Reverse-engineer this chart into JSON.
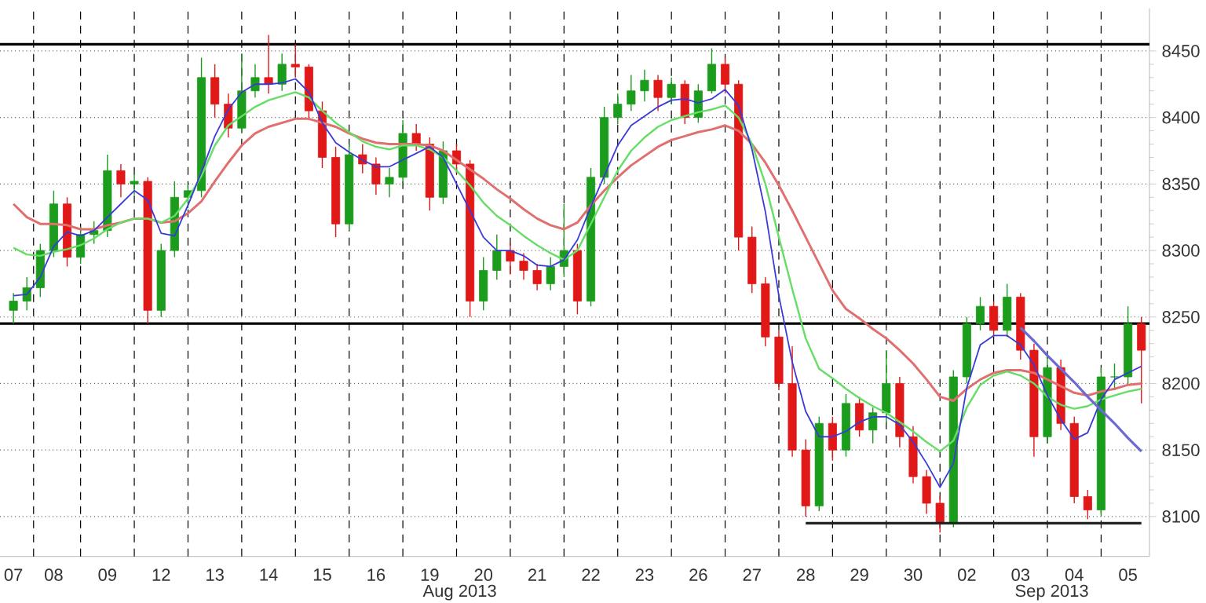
{
  "chart_data": {
    "type": "candlestick",
    "categories": [
      "07",
      null,
      null,
      "08",
      null,
      null,
      null,
      "09",
      null,
      null,
      null,
      "12",
      null,
      null,
      null,
      "13",
      null,
      null,
      null,
      "14",
      null,
      null,
      null,
      "15",
      null,
      null,
      null,
      "16",
      null,
      null,
      null,
      "19",
      null,
      null,
      null,
      "20",
      null,
      null,
      null,
      "21",
      null,
      null,
      null,
      "22",
      null,
      null,
      null,
      "23",
      null,
      null,
      null,
      "26",
      null,
      null,
      null,
      "27",
      null,
      null,
      null,
      "28",
      null,
      null,
      null,
      "29",
      null,
      null,
      null,
      "30",
      null,
      null,
      null,
      "02",
      null,
      null,
      null,
      "03",
      null,
      null,
      null,
      "04",
      null,
      null,
      null,
      "05",
      null
    ],
    "ohlc": [
      [
        8255,
        8268,
        8245,
        8262
      ],
      [
        8262,
        8280,
        8255,
        8272
      ],
      [
        8272,
        8305,
        8265,
        8300
      ],
      [
        8300,
        8345,
        8295,
        8335
      ],
      [
        8335,
        8340,
        8288,
        8295
      ],
      [
        8295,
        8318,
        8290,
        8312
      ],
      [
        8312,
        8322,
        8305,
        8315
      ],
      [
        8315,
        8372,
        8310,
        8360
      ],
      [
        8360,
        8365,
        8340,
        8350
      ],
      [
        8350,
        8358,
        8342,
        8352
      ],
      [
        8352,
        8355,
        8245,
        8255
      ],
      [
        8255,
        8305,
        8250,
        8300
      ],
      [
        8300,
        8352,
        8295,
        8340
      ],
      [
        8340,
        8350,
        8332,
        8345
      ],
      [
        8345,
        8445,
        8340,
        8430
      ],
      [
        8430,
        8440,
        8400,
        8410
      ],
      [
        8410,
        8418,
        8385,
        8392
      ],
      [
        8392,
        8448,
        8388,
        8420
      ],
      [
        8420,
        8440,
        8415,
        8430
      ],
      [
        8430,
        8462,
        8418,
        8425
      ],
      [
        8425,
        8448,
        8420,
        8440
      ],
      [
        8440,
        8455,
        8430,
        8438
      ],
      [
        8438,
        8440,
        8398,
        8405
      ],
      [
        8405,
        8412,
        8362,
        8370
      ],
      [
        8370,
        8378,
        8310,
        8320
      ],
      [
        8320,
        8380,
        8315,
        8372
      ],
      [
        8372,
        8380,
        8358,
        8365
      ],
      [
        8365,
        8370,
        8342,
        8350
      ],
      [
        8350,
        8362,
        8340,
        8355
      ],
      [
        8355,
        8398,
        8350,
        8388
      ],
      [
        8388,
        8395,
        8375,
        8380
      ],
      [
        8380,
        8385,
        8330,
        8340
      ],
      [
        8340,
        8382,
        8335,
        8375
      ],
      [
        8375,
        8380,
        8358,
        8365
      ],
      [
        8365,
        8368,
        8250,
        8262
      ],
      [
        8262,
        8295,
        8255,
        8285
      ],
      [
        8285,
        8312,
        8278,
        8300
      ],
      [
        8300,
        8305,
        8282,
        8292
      ],
      [
        8292,
        8298,
        8278,
        8285
      ],
      [
        8285,
        8290,
        8270,
        8275
      ],
      [
        8275,
        8295,
        8270,
        8288
      ],
      [
        8288,
        8335,
        8280,
        8300
      ],
      [
        8300,
        8305,
        8252,
        8262
      ],
      [
        8262,
        8362,
        8258,
        8355
      ],
      [
        8355,
        8408,
        8350,
        8400
      ],
      [
        8400,
        8418,
        8395,
        8410
      ],
      [
        8410,
        8432,
        8405,
        8420
      ],
      [
        8420,
        8436,
        8412,
        8428
      ],
      [
        8428,
        8432,
        8405,
        8415
      ],
      [
        8415,
        8430,
        8410,
        8425
      ],
      [
        8425,
        8428,
        8395,
        8400
      ],
      [
        8400,
        8425,
        8396,
        8420
      ],
      [
        8420,
        8452,
        8418,
        8440
      ],
      [
        8440,
        8445,
        8418,
        8425
      ],
      [
        8425,
        8428,
        8300,
        8310
      ],
      [
        8310,
        8318,
        8268,
        8275
      ],
      [
        8275,
        8280,
        8228,
        8235
      ],
      [
        8235,
        8240,
        8195,
        8200
      ],
      [
        8200,
        8228,
        8145,
        8150
      ],
      [
        8150,
        8158,
        8100,
        8108
      ],
      [
        8108,
        8175,
        8104,
        8170
      ],
      [
        8170,
        8175,
        8142,
        8150
      ],
      [
        8150,
        8192,
        8145,
        8185
      ],
      [
        8185,
        8190,
        8160,
        8165
      ],
      [
        8165,
        8182,
        8155,
        8178
      ],
      [
        8178,
        8225,
        8170,
        8200
      ],
      [
        8200,
        8205,
        8152,
        8160
      ],
      [
        8160,
        8168,
        8125,
        8130
      ],
      [
        8130,
        8135,
        8102,
        8110
      ],
      [
        8110,
        8115,
        8088,
        8095
      ],
      [
        8095,
        8210,
        8092,
        8205
      ],
      [
        8205,
        8250,
        8200,
        8245
      ],
      [
        8245,
        8265,
        8240,
        8258
      ],
      [
        8258,
        8262,
        8235,
        8240
      ],
      [
        8240,
        8275,
        8235,
        8265
      ],
      [
        8265,
        8268,
        8218,
        8225
      ],
      [
        8225,
        8230,
        8145,
        8160
      ],
      [
        8160,
        8220,
        8155,
        8212
      ],
      [
        8212,
        8218,
        8165,
        8170
      ],
      [
        8170,
        8175,
        8110,
        8115
      ],
      [
        8115,
        8120,
        8098,
        8105
      ],
      [
        8105,
        8212,
        8100,
        8205
      ],
      [
        8205,
        8215,
        8195,
        8205
      ],
      [
        8205,
        8258,
        8200,
        8245
      ],
      [
        8245,
        8250,
        8185,
        8225
      ]
    ],
    "series": [
      {
        "type": "line",
        "color": "#e07070",
        "values": [
          8335,
          8325,
          8320,
          8320,
          8319,
          8316,
          8316,
          8319,
          8321,
          8324,
          8324,
          8321,
          8322,
          8328,
          8337,
          8352,
          8366,
          8379,
          8388,
          8393,
          8396,
          8399,
          8399,
          8396,
          8393,
          8388,
          8384,
          8381,
          8380,
          8380,
          8380,
          8379,
          8375,
          8368,
          8361,
          8354,
          8346,
          8339,
          8331,
          8324,
          8319,
          8316,
          8321,
          8334,
          8345,
          8355,
          8364,
          8371,
          8378,
          8383,
          8386,
          8389,
          8391,
          8394,
          8390,
          8380,
          8366,
          8349,
          8330,
          8310,
          8290,
          8270,
          8256,
          8249,
          8241,
          8234,
          8225,
          8215,
          8203,
          8190,
          8187,
          8196,
          8203,
          8208,
          8210,
          8210,
          8208,
          8203,
          8198,
          8193,
          8191,
          8194,
          8196,
          8199,
          8200
        ]
      },
      {
        "type": "line",
        "color": "#66dd66",
        "values": [
          8302,
          8297,
          8296,
          8299,
          8301,
          8304,
          8309,
          8316,
          8321,
          8324,
          8324,
          8321,
          8326,
          8339,
          8356,
          8379,
          8394,
          8401,
          8408,
          8413,
          8416,
          8419,
          8415,
          8405,
          8396,
          8389,
          8382,
          8378,
          8376,
          8379,
          8379,
          8376,
          8370,
          8360,
          8349,
          8336,
          8326,
          8319,
          8311,
          8304,
          8298,
          8293,
          8300,
          8320,
          8340,
          8360,
          8375,
          8385,
          8393,
          8398,
          8401,
          8404,
          8406,
          8409,
          8400,
          8380,
          8350,
          8310,
          8271,
          8234,
          8211,
          8204,
          8196,
          8189,
          8183,
          8178,
          8171,
          8164,
          8156,
          8149,
          8157,
          8182,
          8199,
          8206,
          8209,
          8206,
          8200,
          8190,
          8184,
          8181,
          8183,
          8188,
          8191,
          8194,
          8196
        ]
      },
      {
        "type": "line",
        "color": "#3a3ad8",
        "values": [
          8266,
          8267,
          8280,
          8303,
          8314,
          8311,
          8315,
          8325,
          8335,
          8345,
          8338,
          8313,
          8311,
          8334,
          8359,
          8386,
          8406,
          8419,
          8425,
          8425,
          8426,
          8429,
          8419,
          8396,
          8381,
          8374,
          8368,
          8363,
          8363,
          8368,
          8373,
          8378,
          8370,
          8350,
          8330,
          8310,
          8300,
          8300,
          8296,
          8289,
          8288,
          8293,
          8308,
          8333,
          8356,
          8379,
          8394,
          8401,
          8408,
          8413,
          8414,
          8411,
          8414,
          8421,
          8409,
          8376,
          8329,
          8266,
          8216,
          8179,
          8160,
          8160,
          8164,
          8171,
          8175,
          8175,
          8169,
          8156,
          8140,
          8122,
          8140,
          8197,
          8229,
          8236,
          8236,
          8229,
          8214,
          8191,
          8173,
          8158,
          8163,
          8188,
          8203,
          8208,
          8213
        ]
      },
      {
        "type": "line",
        "color": "#222222",
        "values": [
          null,
          null,
          null,
          null,
          null,
          null,
          null,
          null,
          null,
          null,
          null,
          null,
          null,
          null,
          null,
          null,
          null,
          null,
          null,
          null,
          null,
          null,
          null,
          null,
          null,
          null,
          null,
          null,
          null,
          null,
          null,
          null,
          null,
          null,
          null,
          null,
          null,
          null,
          null,
          null,
          null,
          null,
          null,
          null,
          null,
          null,
          null,
          null,
          null,
          null,
          null,
          null,
          null,
          null,
          null,
          null,
          null,
          null,
          null,
          8095,
          8095,
          8095,
          8095,
          8095,
          8095,
          8095,
          8095,
          8095,
          8095,
          8095,
          8095,
          8095,
          8095,
          8095,
          8095,
          8095,
          8095,
          8095,
          8095,
          8095,
          8095,
          8095,
          8095,
          8095,
          8095
        ]
      },
      {
        "type": "line",
        "color": "#6a6ad0",
        "values": [
          null,
          null,
          null,
          null,
          null,
          null,
          null,
          null,
          null,
          null,
          null,
          null,
          null,
          null,
          null,
          null,
          null,
          null,
          null,
          null,
          null,
          null,
          null,
          null,
          null,
          null,
          null,
          null,
          null,
          null,
          null,
          null,
          null,
          null,
          null,
          null,
          null,
          null,
          null,
          null,
          null,
          null,
          null,
          null,
          null,
          null,
          null,
          null,
          null,
          null,
          null,
          null,
          null,
          null,
          null,
          null,
          null,
          null,
          null,
          null,
          null,
          null,
          null,
          null,
          null,
          null,
          null,
          null,
          null,
          null,
          null,
          null,
          null,
          null,
          null,
          8242,
          8232,
          8221,
          8211,
          8201,
          8190,
          8180,
          8170,
          8159,
          8149
        ]
      }
    ],
    "ref_lines": [
      {
        "axis": "y",
        "value": 8455,
        "color": "#000000"
      },
      {
        "axis": "y",
        "value": 8245,
        "color": "#000000"
      }
    ],
    "ylim": [
      8070,
      8482
    ],
    "yticks": [
      8100,
      8150,
      8200,
      8250,
      8300,
      8350,
      8400,
      8450
    ],
    "grid": true,
    "annotations": [
      "Aug 2013",
      "Sep 2013"
    ]
  }
}
